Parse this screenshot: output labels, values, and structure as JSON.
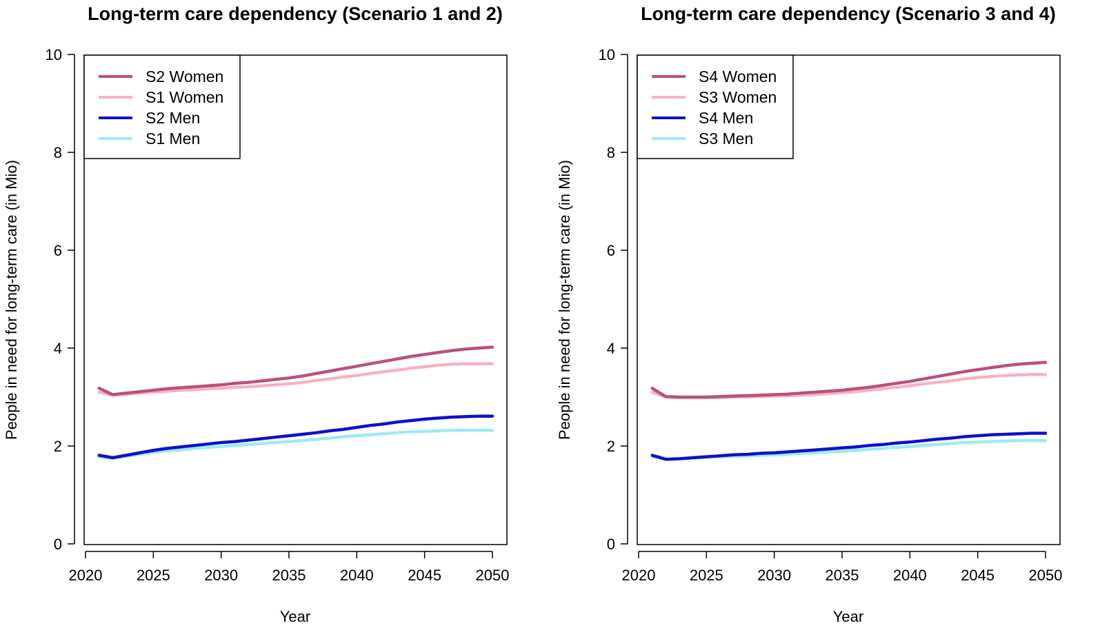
{
  "chart_data": [
    {
      "type": "line",
      "title": "Long-term care dependency (Scenario 1 and 2)",
      "xlabel": "Year",
      "ylabel": "People in need for long-term care (in Mio)",
      "xlim": [
        2020,
        2050
      ],
      "ylim": [
        0,
        10
      ],
      "xticks": [
        2020,
        2025,
        2030,
        2035,
        2040,
        2045,
        2050
      ],
      "yticks": [
        0,
        2,
        4,
        6,
        8,
        10
      ],
      "legend_position": "top-left",
      "x": [
        2021,
        2022,
        2023,
        2024,
        2025,
        2026,
        2027,
        2028,
        2029,
        2030,
        2031,
        2032,
        2033,
        2034,
        2035,
        2036,
        2037,
        2038,
        2039,
        2040,
        2041,
        2042,
        2043,
        2044,
        2045,
        2046,
        2047,
        2048,
        2049,
        2050
      ],
      "series": [
        {
          "name": "S2 Women",
          "color": "#B8527F",
          "values": [
            3.18,
            3.05,
            3.08,
            3.11,
            3.14,
            3.17,
            3.19,
            3.21,
            3.23,
            3.25,
            3.28,
            3.3,
            3.33,
            3.36,
            3.39,
            3.43,
            3.48,
            3.53,
            3.58,
            3.63,
            3.68,
            3.73,
            3.78,
            3.83,
            3.87,
            3.91,
            3.95,
            3.98,
            4.0,
            4.02
          ]
        },
        {
          "name": "S1 Women",
          "color": "#F6B3C2",
          "values": [
            3.1,
            3.04,
            3.06,
            3.08,
            3.1,
            3.12,
            3.14,
            3.15,
            3.17,
            3.18,
            3.2,
            3.21,
            3.23,
            3.25,
            3.27,
            3.3,
            3.34,
            3.37,
            3.41,
            3.44,
            3.48,
            3.52,
            3.55,
            3.59,
            3.62,
            3.65,
            3.67,
            3.68,
            3.68,
            3.68
          ]
        },
        {
          "name": "S2 Men",
          "color": "#0F10CC",
          "values": [
            1.81,
            1.76,
            1.81,
            1.86,
            1.91,
            1.95,
            1.98,
            2.01,
            2.04,
            2.07,
            2.09,
            2.12,
            2.15,
            2.18,
            2.21,
            2.24,
            2.27,
            2.31,
            2.34,
            2.38,
            2.42,
            2.45,
            2.49,
            2.52,
            2.55,
            2.57,
            2.59,
            2.6,
            2.61,
            2.61
          ]
        },
        {
          "name": "S1 Men",
          "color": "#9EEBF2",
          "values": [
            1.78,
            1.75,
            1.79,
            1.83,
            1.87,
            1.9,
            1.92,
            1.95,
            1.97,
            1.99,
            2.01,
            2.03,
            2.05,
            2.07,
            2.09,
            2.11,
            2.14,
            2.16,
            2.19,
            2.21,
            2.23,
            2.25,
            2.27,
            2.29,
            2.3,
            2.31,
            2.32,
            2.32,
            2.32,
            2.32
          ]
        }
      ]
    },
    {
      "type": "line",
      "title": "Long-term care dependency (Scenario 3 and 4)",
      "xlabel": "Year",
      "ylabel": "People in need for long-term care (in Mio)",
      "xlim": [
        2020,
        2050
      ],
      "ylim": [
        0,
        10
      ],
      "xticks": [
        2020,
        2025,
        2030,
        2035,
        2040,
        2045,
        2050
      ],
      "yticks": [
        0,
        2,
        4,
        6,
        8,
        10
      ],
      "legend_position": "top-left",
      "x": [
        2021,
        2022,
        2023,
        2024,
        2025,
        2026,
        2027,
        2028,
        2029,
        2030,
        2031,
        2032,
        2033,
        2034,
        2035,
        2036,
        2037,
        2038,
        2039,
        2040,
        2041,
        2042,
        2043,
        2044,
        2045,
        2046,
        2047,
        2048,
        2049,
        2050
      ],
      "series": [
        {
          "name": "S4 Women",
          "color": "#B8527F",
          "values": [
            3.18,
            3.01,
            3.0,
            3.0,
            3.0,
            3.01,
            3.02,
            3.03,
            3.04,
            3.05,
            3.06,
            3.08,
            3.1,
            3.12,
            3.14,
            3.17,
            3.2,
            3.24,
            3.28,
            3.32,
            3.37,
            3.42,
            3.47,
            3.52,
            3.56,
            3.6,
            3.64,
            3.67,
            3.69,
            3.71
          ]
        },
        {
          "name": "S3 Women",
          "color": "#F6B3C2",
          "values": [
            3.1,
            3.0,
            2.99,
            2.99,
            2.99,
            2.99,
            3.0,
            3.0,
            3.01,
            3.02,
            3.03,
            3.04,
            3.05,
            3.07,
            3.09,
            3.11,
            3.14,
            3.17,
            3.2,
            3.23,
            3.27,
            3.3,
            3.33,
            3.37,
            3.4,
            3.42,
            3.44,
            3.45,
            3.46,
            3.46
          ]
        },
        {
          "name": "S4 Men",
          "color": "#0F10CC",
          "values": [
            1.81,
            1.73,
            1.74,
            1.76,
            1.78,
            1.8,
            1.82,
            1.83,
            1.85,
            1.86,
            1.88,
            1.9,
            1.92,
            1.94,
            1.96,
            1.98,
            2.01,
            2.03,
            2.06,
            2.08,
            2.11,
            2.14,
            2.16,
            2.19,
            2.21,
            2.23,
            2.24,
            2.25,
            2.26,
            2.26
          ]
        },
        {
          "name": "S3 Men",
          "color": "#9EEBF2",
          "values": [
            1.78,
            1.73,
            1.74,
            1.75,
            1.77,
            1.78,
            1.79,
            1.8,
            1.81,
            1.82,
            1.83,
            1.85,
            1.86,
            1.88,
            1.89,
            1.91,
            1.93,
            1.95,
            1.97,
            1.99,
            2.01,
            2.03,
            2.05,
            2.07,
            2.08,
            2.09,
            2.1,
            2.11,
            2.11,
            2.11
          ]
        }
      ]
    }
  ]
}
